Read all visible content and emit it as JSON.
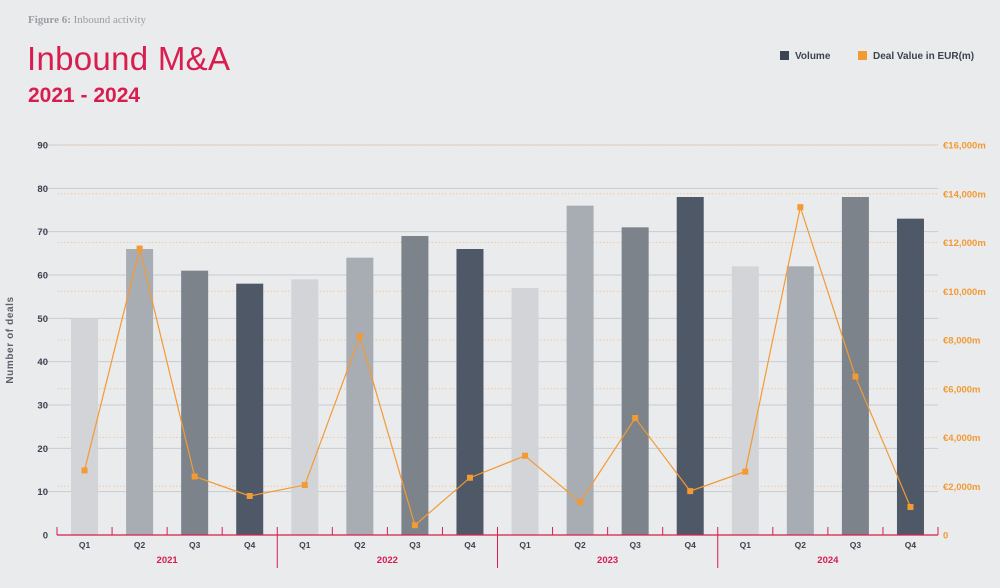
{
  "figure": {
    "prefix": "Figure 6:",
    "text": "Inbound activity"
  },
  "title": "Inbound M&A",
  "subtitle": "2021 - 2024",
  "legend": {
    "volume": "Volume",
    "value": "Deal Value in EUR(m)"
  },
  "colors": {
    "accent": "#d81d4f",
    "line": "#f39a33",
    "bar_q1": "#d3d4d7",
    "bar_q2": "#a8adb3",
    "bar_q3": "#7c838b",
    "bar_q4": "#4f5866",
    "legend_volume": "#3b4453"
  },
  "chart_data": {
    "type": "bar",
    "categories": [
      "Q1",
      "Q2",
      "Q3",
      "Q4",
      "Q1",
      "Q2",
      "Q3",
      "Q4",
      "Q1",
      "Q2",
      "Q3",
      "Q4",
      "Q1",
      "Q2",
      "Q3",
      "Q4"
    ],
    "years": [
      "2021",
      "2022",
      "2023",
      "2024"
    ],
    "ylabel": "Number of deals",
    "ylim": [
      0,
      90
    ],
    "yticks": [
      "0",
      "10",
      "20",
      "30",
      "40",
      "50",
      "60",
      "70",
      "80",
      "90"
    ],
    "y2lim": [
      0,
      16000
    ],
    "y2ticks": [
      "0",
      "€2,000m",
      "€4,000m",
      "€6,000m",
      "€8,000m",
      "€10,000m",
      "€12,000m",
      "€14,000m",
      "€16,000m"
    ],
    "series": [
      {
        "name": "Volume",
        "type": "bar",
        "values": [
          50,
          66,
          61,
          58,
          59,
          64,
          69,
          66,
          57,
          76,
          71,
          78,
          62,
          62,
          78,
          73
        ]
      },
      {
        "name": "Deal Value in EUR(m)",
        "type": "line",
        "axis": "right",
        "values": [
          2650,
          11750,
          2400,
          1600,
          2050,
          8150,
          400,
          2350,
          3250,
          1350,
          4800,
          1800,
          2600,
          13450,
          6500,
          1150
        ]
      }
    ],
    "grid": true,
    "legend_position": "top-right"
  }
}
